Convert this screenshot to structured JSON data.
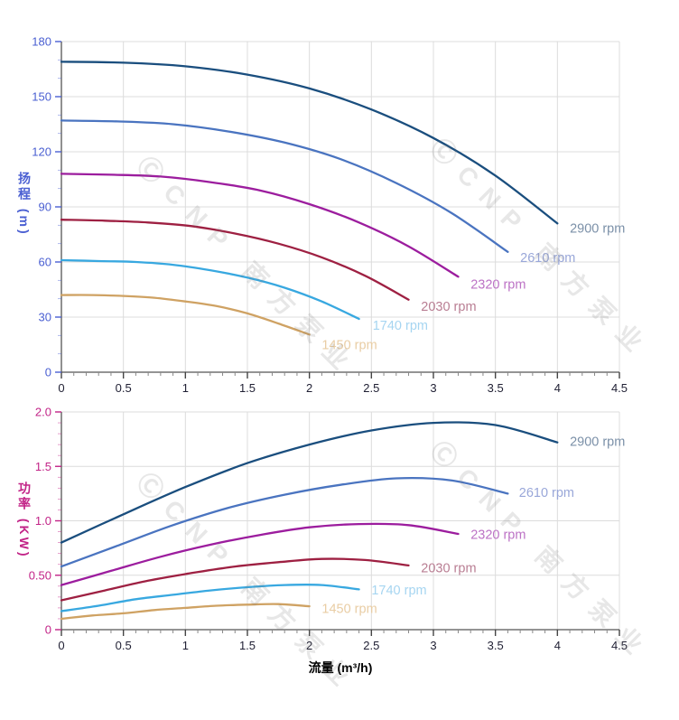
{
  "watermark": {
    "text": "ⒸCNP 南方泵业"
  },
  "colors": {
    "grid": "#dcdcdc",
    "spine": "#555555",
    "x_tick": "#444444",
    "x_minor_tick": "#888888",
    "x_tick_text": "#1f1f33",
    "xlabel_text": "#000000"
  },
  "chart_data": [
    {
      "name": "head-curve-chart",
      "type": "line",
      "title": "",
      "ylabel": "扬程 (m)",
      "xlabel": "",
      "xlim": [
        0,
        4.5
      ],
      "ylim": [
        0,
        180
      ],
      "grid": true,
      "legend_position": "end-of-curve",
      "xticks": [
        0,
        0.5,
        1,
        1.5,
        2,
        2.5,
        3,
        3.5,
        4,
        4.5
      ],
      "xtick_labels": [
        "0",
        "0.5",
        "1",
        "1.5",
        "2",
        "2.5",
        "3",
        "3.5",
        "4",
        "4.5"
      ],
      "x_minor_step": 0.1,
      "yticks": [
        0,
        30,
        60,
        90,
        120,
        150,
        180
      ],
      "ytick_labels": [
        "0",
        "30",
        "60",
        "90",
        "120",
        "150",
        "180"
      ],
      "y_minor_step": 10,
      "axis_color": "#4a5fd2",
      "series": [
        {
          "name": "2900 rpm",
          "color": "#1a4e7e",
          "label_color": "#7b90a8",
          "points": [
            [
              0,
              169
            ],
            [
              0.5,
              168.5
            ],
            [
              1,
              166.5
            ],
            [
              1.5,
              162
            ],
            [
              2,
              154.5
            ],
            [
              2.5,
              143
            ],
            [
              3,
              127.5
            ],
            [
              3.5,
              107
            ],
            [
              4,
              81
            ]
          ],
          "label_xy": [
            4.1,
            78.5
          ]
        },
        {
          "name": "2610 rpm",
          "color": "#4a74c0",
          "label_color": "#99a7d9",
          "points": [
            [
              0,
              137
            ],
            [
              0.45,
              136.5
            ],
            [
              0.9,
              135
            ],
            [
              1.35,
              131
            ],
            [
              1.8,
              125
            ],
            [
              2.25,
              116
            ],
            [
              2.7,
              103
            ],
            [
              3.15,
              86.5
            ],
            [
              3.6,
              65.5
            ]
          ],
          "label_xy": [
            3.7,
            62.5
          ]
        },
        {
          "name": "2320 rpm",
          "color": "#9c1d9e",
          "label_color": "#bc72c5",
          "points": [
            [
              0,
              108
            ],
            [
              0.4,
              107.5
            ],
            [
              0.8,
              106.5
            ],
            [
              1.2,
              103.5
            ],
            [
              1.6,
              99
            ],
            [
              2,
              91.5
            ],
            [
              2.4,
              81.5
            ],
            [
              2.8,
              68.5
            ],
            [
              3.2,
              52
            ]
          ],
          "label_xy": [
            3.3,
            48
          ]
        },
        {
          "name": "2030 rpm",
          "color": "#9e2042",
          "label_color": "#b97e93",
          "points": [
            [
              0,
              83
            ],
            [
              0.35,
              82.5
            ],
            [
              0.7,
              81.5
            ],
            [
              1.05,
              79.5
            ],
            [
              1.4,
              75.5
            ],
            [
              1.75,
              70
            ],
            [
              2.1,
              62.5
            ],
            [
              2.45,
              52.5
            ],
            [
              2.8,
              39.5
            ]
          ],
          "label_xy": [
            2.9,
            36
          ]
        },
        {
          "name": "1740 rpm",
          "color": "#38a8e0",
          "label_color": "#a6d5f1",
          "points": [
            [
              0,
              61
            ],
            [
              0.3,
              60.5
            ],
            [
              0.6,
              60
            ],
            [
              0.9,
              58.5
            ],
            [
              1.2,
              55.5
            ],
            [
              1.5,
              51.5
            ],
            [
              1.8,
              46
            ],
            [
              2.1,
              38.5
            ],
            [
              2.4,
              29
            ]
          ],
          "label_xy": [
            2.51,
            25.5
          ]
        },
        {
          "name": "1450 rpm",
          "color": "#cfa263",
          "label_color": "#e9cda4",
          "points": [
            [
              0,
              42
            ],
            [
              0.25,
              42
            ],
            [
              0.5,
              41.5
            ],
            [
              0.75,
              40.5
            ],
            [
              1,
              38.5
            ],
            [
              1.25,
              36
            ],
            [
              1.5,
              32
            ],
            [
              1.75,
              26.5
            ],
            [
              2,
              20.5
            ]
          ],
          "label_xy": [
            2.1,
            15
          ]
        }
      ]
    },
    {
      "name": "power-curve-chart",
      "type": "line",
      "title": "",
      "ylabel": "功率 (KW)",
      "xlabel": "流量 (m³/h)",
      "xlim": [
        0,
        4.5
      ],
      "ylim": [
        0,
        2
      ],
      "grid": true,
      "legend_position": "end-of-curve",
      "xticks": [
        0,
        0.5,
        1,
        1.5,
        2,
        2.5,
        3,
        3.5,
        4,
        4.5
      ],
      "xtick_labels": [
        "0",
        "0.5",
        "1",
        "1.5",
        "2",
        "2.5",
        "3",
        "3.5",
        "4",
        "4.5"
      ],
      "x_minor_step": 0.1,
      "yticks": [
        0,
        0.5,
        1,
        1.5,
        2
      ],
      "ytick_labels": [
        "0",
        "0.50",
        "1.0",
        "1.5",
        "2.0"
      ],
      "y_minor_step": 0.1,
      "axis_color": "#c22387",
      "series": [
        {
          "name": "2900 rpm",
          "color": "#1a4e7e",
          "label_color": "#7b90a8",
          "points": [
            [
              0,
              0.8
            ],
            [
              0.5,
              1.06
            ],
            [
              1,
              1.31
            ],
            [
              1.5,
              1.53
            ],
            [
              2,
              1.7
            ],
            [
              2.5,
              1.83
            ],
            [
              3,
              1.9
            ],
            [
              3.5,
              1.88
            ],
            [
              4,
              1.72
            ]
          ],
          "label_xy": [
            4.1,
            1.73
          ]
        },
        {
          "name": "2610 rpm",
          "color": "#4a74c0",
          "label_color": "#99a7d9",
          "points": [
            [
              0,
              0.58
            ],
            [
              0.45,
              0.77
            ],
            [
              0.9,
              0.96
            ],
            [
              1.35,
              1.12
            ],
            [
              1.8,
              1.24
            ],
            [
              2.25,
              1.33
            ],
            [
              2.7,
              1.39
            ],
            [
              3.15,
              1.37
            ],
            [
              3.6,
              1.25
            ]
          ],
          "label_xy": [
            3.69,
            1.26
          ]
        },
        {
          "name": "2320 rpm",
          "color": "#9c1d9e",
          "label_color": "#bc72c5",
          "points": [
            [
              0,
              0.41
            ],
            [
              0.4,
              0.54
            ],
            [
              0.8,
              0.67
            ],
            [
              1.2,
              0.78
            ],
            [
              1.6,
              0.87
            ],
            [
              2,
              0.94
            ],
            [
              2.4,
              0.97
            ],
            [
              2.8,
              0.96
            ],
            [
              3.2,
              0.88
            ]
          ],
          "label_xy": [
            3.3,
            0.875
          ]
        },
        {
          "name": "2030 rpm",
          "color": "#9e2042",
          "label_color": "#b97e93",
          "points": [
            [
              0,
              0.27
            ],
            [
              0.35,
              0.36
            ],
            [
              0.7,
              0.45
            ],
            [
              1.05,
              0.52
            ],
            [
              1.4,
              0.58
            ],
            [
              1.75,
              0.62
            ],
            [
              2.1,
              0.65
            ],
            [
              2.45,
              0.64
            ],
            [
              2.8,
              0.59
            ]
          ],
          "label_xy": [
            2.9,
            0.57
          ]
        },
        {
          "name": "1740 rpm",
          "color": "#38a8e0",
          "label_color": "#a6d5f1",
          "points": [
            [
              0,
              0.17
            ],
            [
              0.3,
              0.22
            ],
            [
              0.6,
              0.28
            ],
            [
              0.9,
              0.32
            ],
            [
              1.2,
              0.36
            ],
            [
              1.5,
              0.39
            ],
            [
              1.8,
              0.41
            ],
            [
              2.1,
              0.41
            ],
            [
              2.4,
              0.37
            ]
          ],
          "label_xy": [
            2.5,
            0.365
          ]
        },
        {
          "name": "1450 rpm",
          "color": "#cfa263",
          "label_color": "#e9cda4",
          "points": [
            [
              0,
              0.1
            ],
            [
              0.25,
              0.13
            ],
            [
              0.5,
              0.15
            ],
            [
              0.75,
              0.18
            ],
            [
              1,
              0.2
            ],
            [
              1.25,
              0.22
            ],
            [
              1.5,
              0.23
            ],
            [
              1.75,
              0.235
            ],
            [
              2,
              0.215
            ]
          ],
          "label_xy": [
            2.1,
            0.195
          ]
        }
      ]
    }
  ]
}
